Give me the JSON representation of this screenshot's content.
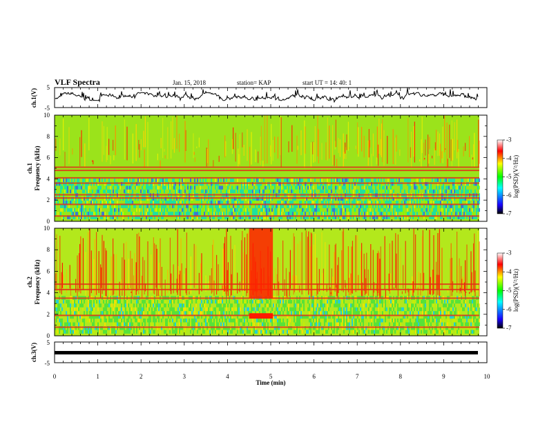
{
  "header": {
    "title": "VLF Spectra",
    "date": "Jan. 15, 2018",
    "station": "station= KAP",
    "start": "start  UT =   14: 40: 1"
  },
  "chart_data": [
    {
      "type": "line",
      "panel": "ch1-waveform",
      "ylabel": "ch.1(V)",
      "ylim": [
        -5,
        5
      ],
      "ytick_labels": [
        "5",
        "-5"
      ],
      "xlim": [
        0,
        10
      ],
      "trace_color": "#000000",
      "trace_approx_range": [
        -2,
        3
      ]
    },
    {
      "type": "heatmap",
      "panel": "ch1-spectrogram",
      "ylabel": "ch.1\nFrequency (kHz)",
      "ylabel_line1": "ch.1",
      "ylabel_line2": "Frequency (kHz)",
      "ylim": [
        0,
        10
      ],
      "ytick_labels": [
        "0",
        "2",
        "4",
        "6",
        "8",
        "10"
      ],
      "xlim": [
        0,
        9.8
      ],
      "colorbar": {
        "label": "log(PSD)(V²/Hz)",
        "range": [
          -7,
          -3
        ],
        "tick_labels": [
          "-3",
          "-4",
          "-5",
          "-6",
          "-7"
        ],
        "colors": [
          "#000000",
          "#1a00ff",
          "#00ffff",
          "#00ff00",
          "#ffff00",
          "#ff0000",
          "#ffffff"
        ]
      },
      "bands_khz": [
        0.5,
        1.6,
        2.2,
        2.5,
        3.6,
        4.1,
        4.8,
        5.1
      ]
    },
    {
      "type": "heatmap",
      "panel": "ch2-spectrogram",
      "ylabel": "ch.2\nFrequency (kHz)",
      "ylabel_line1": "ch.2",
      "ylabel_line2": "Frequency (kHz)",
      "ylim": [
        0,
        10
      ],
      "ytick_labels": [
        "0",
        "2",
        "4",
        "6",
        "8",
        "10"
      ],
      "xlim": [
        0,
        9.8
      ],
      "colorbar": {
        "label": "log(PSD)(V²/Hz)",
        "range": [
          -7,
          -3
        ],
        "tick_labels": [
          "-3",
          "-4",
          "-5",
          "-6",
          "-7"
        ],
        "colors": [
          "#000000",
          "#1a00ff",
          "#00ffff",
          "#00ff00",
          "#ffff00",
          "#ff0000",
          "#ffffff"
        ]
      },
      "bands_khz": [
        0.8,
        1.9,
        3.5,
        4.3,
        4.8
      ]
    },
    {
      "type": "line",
      "panel": "ch3-waveform",
      "ylabel": "ch.3(V)",
      "ylim": [
        -5,
        5
      ],
      "ytick_labels": [
        "5",
        "-5"
      ],
      "xlim": [
        0,
        10
      ],
      "trace_value": 0,
      "trace_color": "#000000",
      "xlabel": "Time (min)",
      "xtick_labels": [
        "0",
        "1",
        "2",
        "3",
        "4",
        "5",
        "6",
        "7",
        "8",
        "9",
        "10"
      ]
    }
  ]
}
